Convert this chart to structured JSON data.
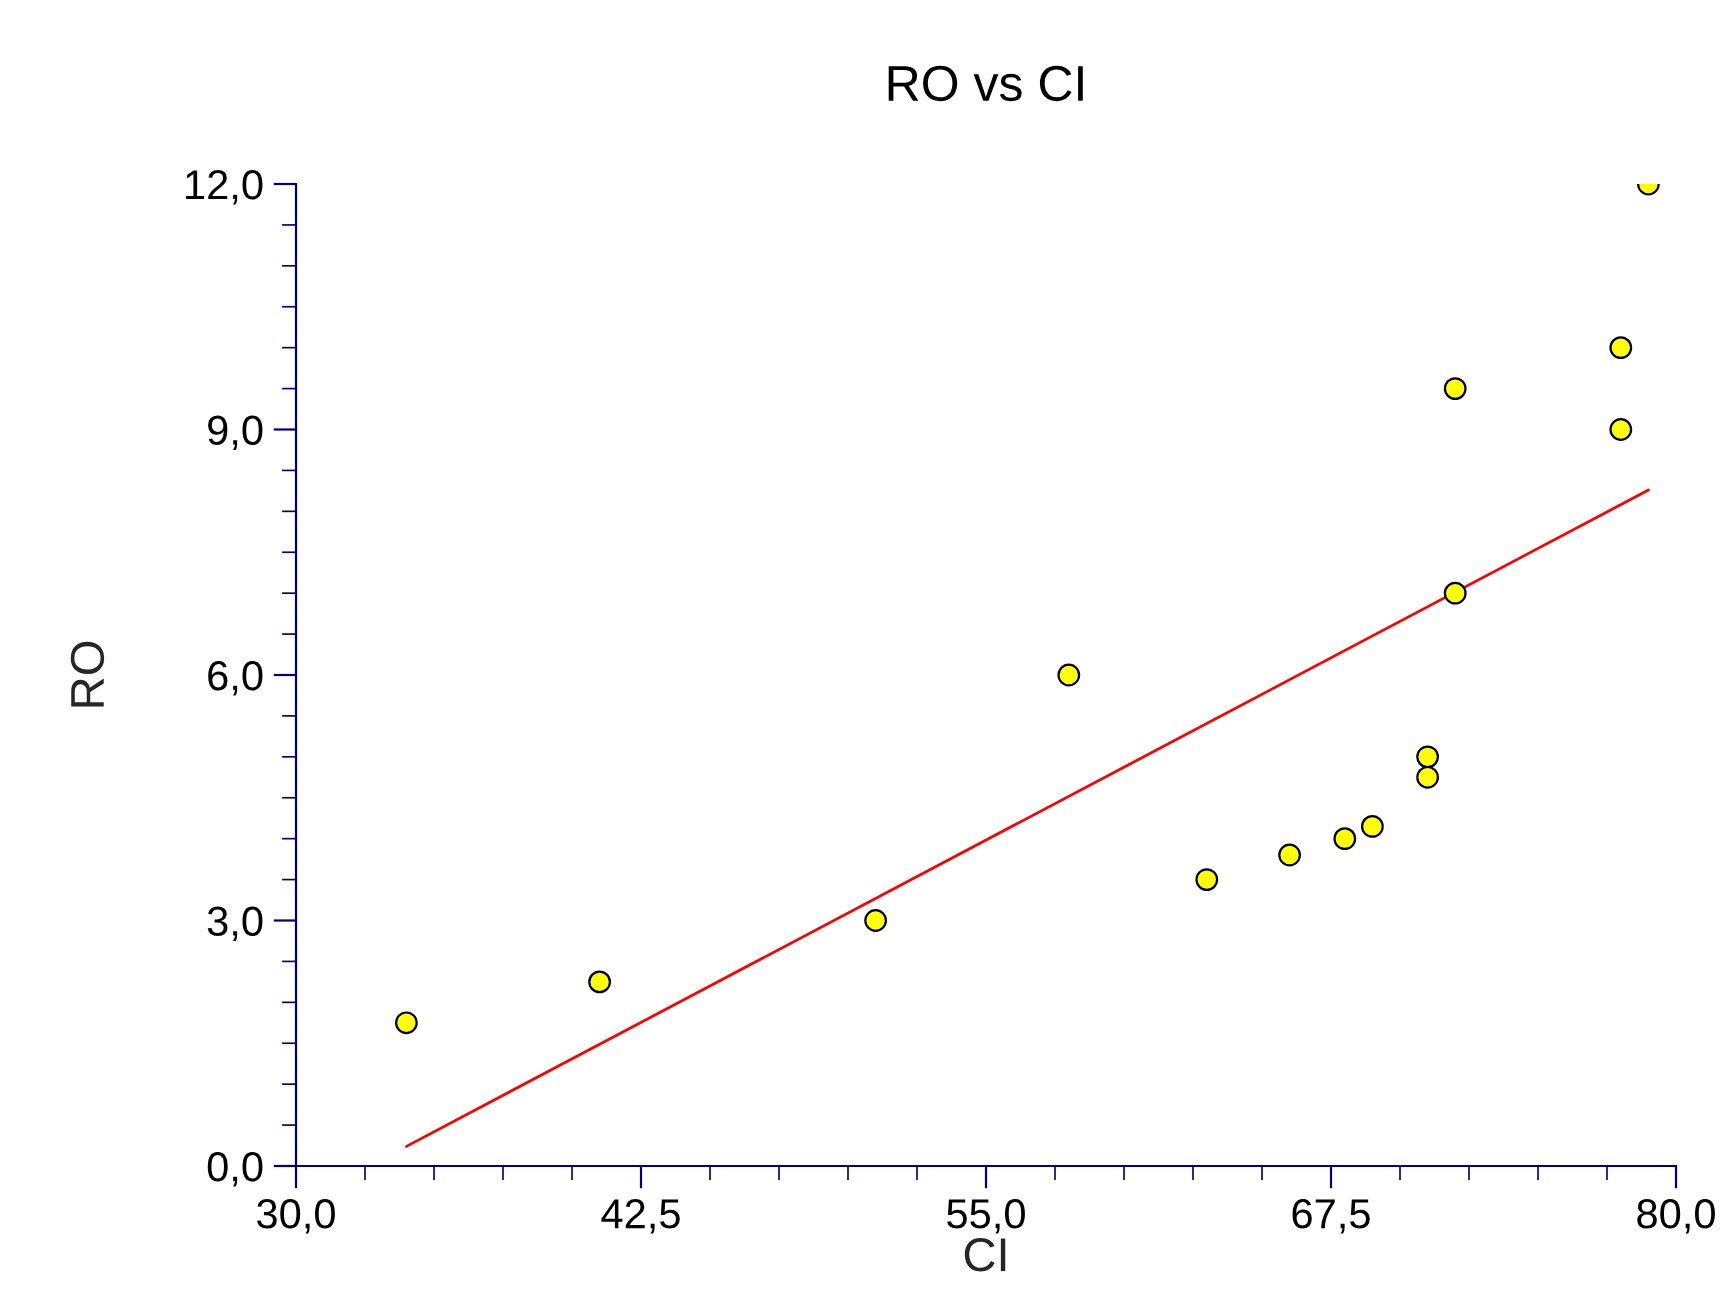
{
  "chart_data": {
    "type": "scatter",
    "title": "RO vs CI",
    "xlabel": "CI",
    "ylabel": "RO",
    "series": [
      {
        "type": "scatter",
        "marker": "circle",
        "color": "#ffff00",
        "x": [
          34,
          41,
          51,
          58,
          63,
          66,
          68,
          69,
          71,
          71,
          72,
          72,
          78,
          78,
          79
        ],
        "values": [
          1.75,
          2.25,
          3.0,
          6.0,
          3.5,
          3.8,
          4.0,
          4.15,
          5.0,
          4.75,
          7.0,
          9.5,
          9.0,
          10.0,
          12.0
        ]
      },
      {
        "type": "line",
        "color": "#ff0000",
        "x": [
          34,
          79
        ],
        "values": [
          0.24,
          8.26
        ]
      }
    ],
    "xlim": [
      30,
      80
    ],
    "ylim": [
      0,
      12
    ],
    "xticks": [
      {
        "value": 30,
        "label": "30,0"
      },
      {
        "value": 42.5,
        "label": "42,5"
      },
      {
        "value": 55,
        "label": "55,0"
      },
      {
        "value": 67.5,
        "label": "67,5"
      },
      {
        "value": 80,
        "label": "80,0"
      }
    ],
    "yticks": [
      {
        "value": 0,
        "label": "0,0"
      },
      {
        "value": 3,
        "label": "3,0"
      },
      {
        "value": 6,
        "label": "6,0"
      },
      {
        "value": 9,
        "label": "9,0"
      },
      {
        "value": 12,
        "label": "12,0"
      }
    ],
    "grid": false,
    "legend": false
  }
}
